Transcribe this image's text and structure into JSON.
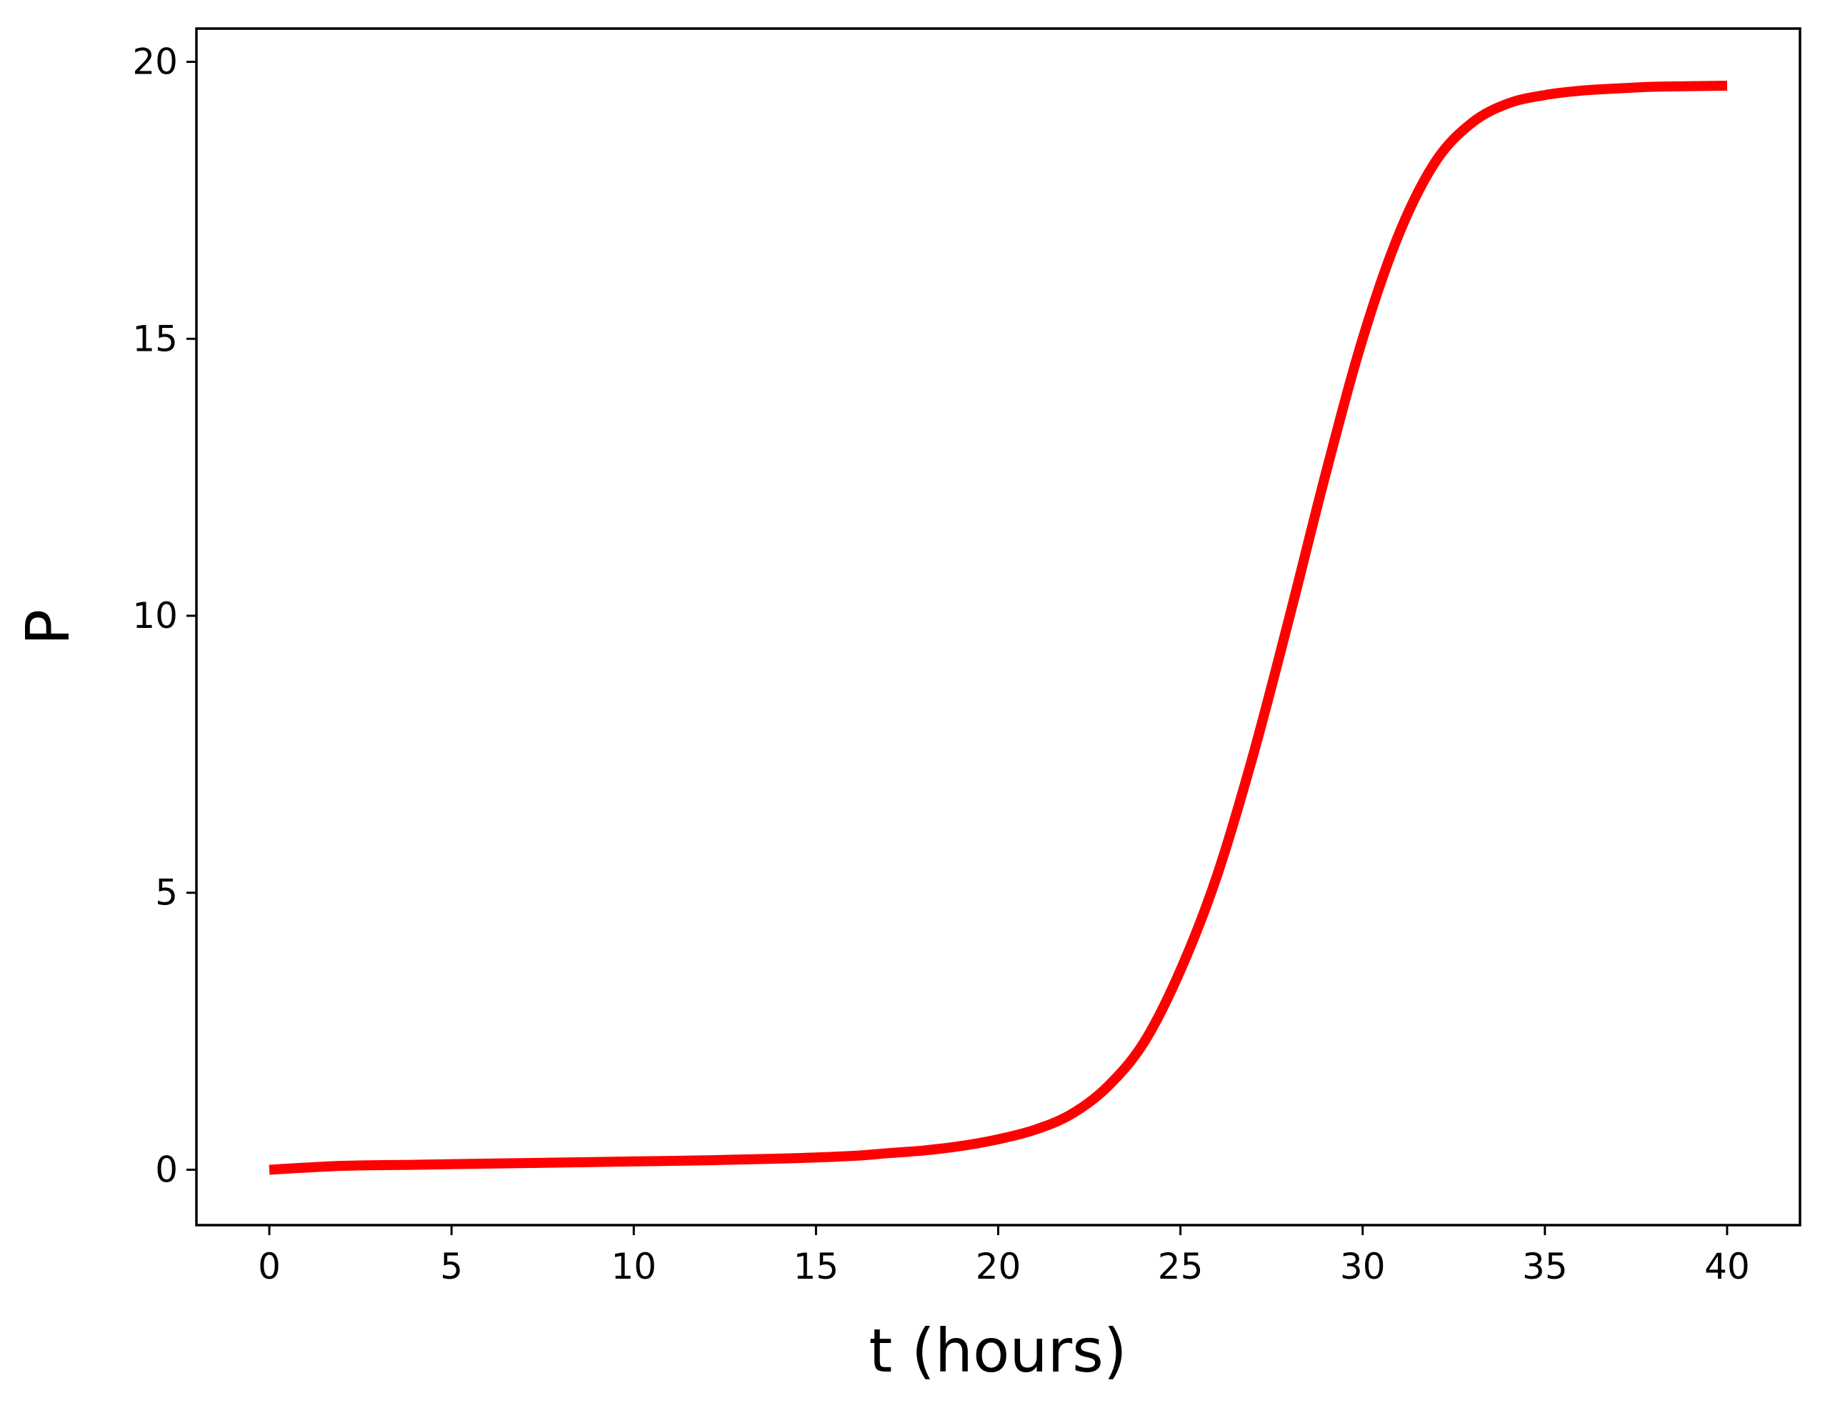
{
  "chart_data": {
    "type": "line",
    "xlabel": "t (hours)",
    "ylabel": "P",
    "xlim": [
      -2,
      42
    ],
    "ylim": [
      -1,
      20.6
    ],
    "xticks": [
      0,
      5,
      10,
      15,
      20,
      25,
      30,
      35,
      40
    ],
    "yticks": [
      0,
      5,
      10,
      15,
      20
    ],
    "grid": false,
    "colors": {
      "line": "#ff0000",
      "axes": "#000000",
      "background": "#ffffff"
    },
    "series": [
      {
        "x": [
          0,
          2,
          4,
          6,
          8,
          10,
          12,
          14,
          16,
          17,
          18,
          19,
          20,
          21,
          22,
          23,
          24,
          25,
          26,
          27,
          28,
          29,
          30,
          31,
          32,
          33,
          34,
          35,
          36,
          37,
          38,
          39,
          40
        ],
        "y": [
          0.0,
          0.07,
          0.09,
          0.11,
          0.13,
          0.15,
          0.17,
          0.2,
          0.25,
          0.3,
          0.35,
          0.43,
          0.55,
          0.72,
          1.0,
          1.5,
          2.3,
          3.6,
          5.3,
          7.5,
          10.0,
          12.6,
          15.0,
          16.9,
          18.2,
          18.9,
          19.25,
          19.4,
          19.48,
          19.52,
          19.55,
          19.56,
          19.57
        ]
      }
    ]
  }
}
